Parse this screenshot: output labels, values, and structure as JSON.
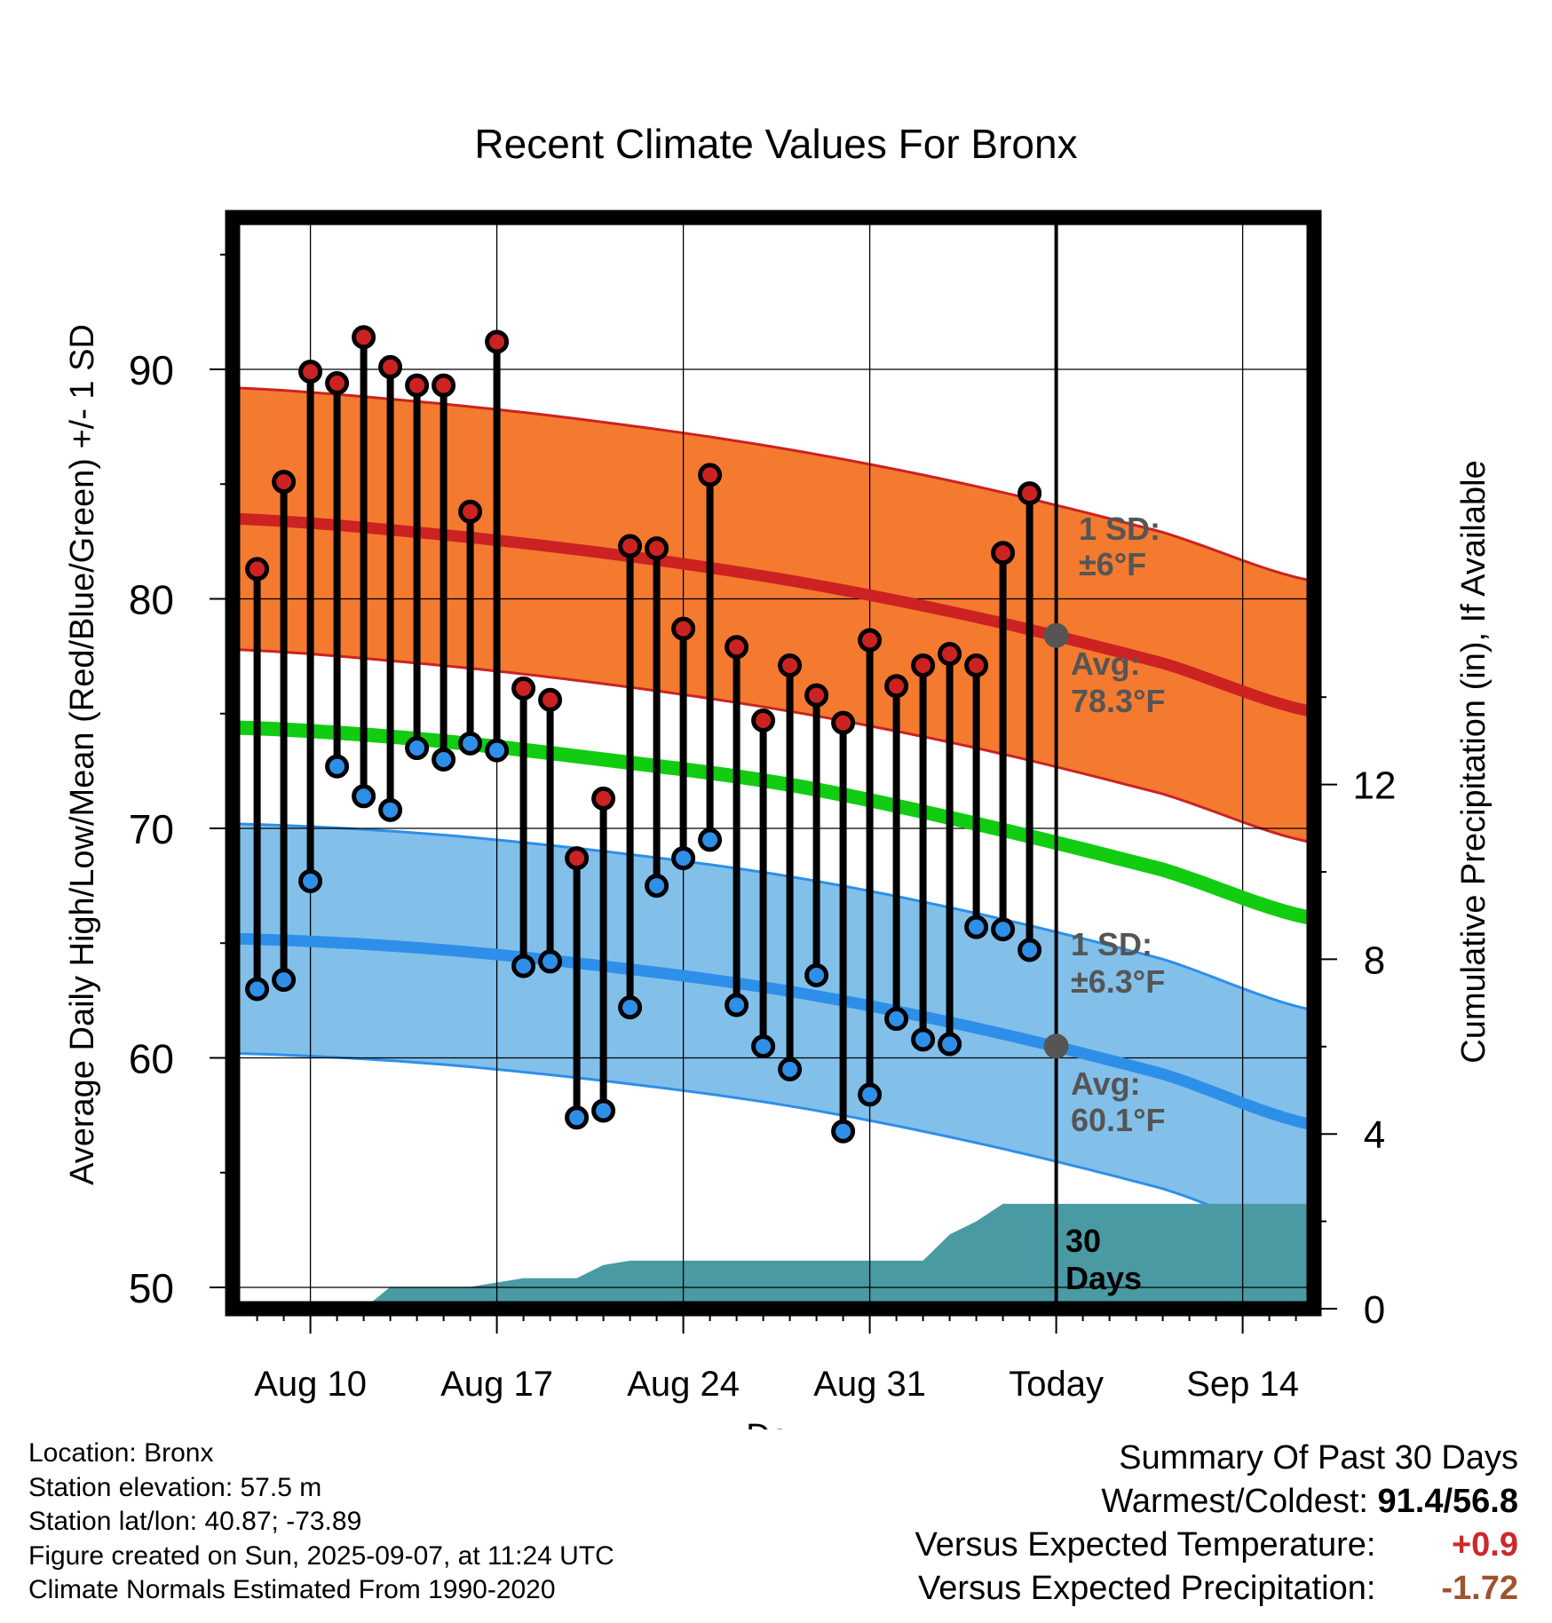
{
  "chart_data": {
    "type": "scatter",
    "title": "Recent Climate Values For Bronx",
    "xlabel": "Day",
    "ylabel": "Average Daily High/Low/Mean (Red/Blue/Green) +/- 1 SD",
    "ylabel_right": "Cumulative Precipitation (in), If Available",
    "x_tick_labels": [
      "Aug 10",
      "Aug 17",
      "Aug 24",
      "Aug 31",
      "Today",
      "Sep 14"
    ],
    "y_ticks": [
      50,
      60,
      70,
      80,
      90
    ],
    "y2_ticks": [
      0,
      4,
      8,
      12
    ],
    "ylim": [
      49,
      96
    ],
    "y2lim": [
      0,
      24
    ],
    "colors": {
      "high": "#cc2222",
      "high_band": "#f47a30",
      "low": "#2e8fe8",
      "low_band": "#82c0ea",
      "mean": "#11cc11",
      "precip": "#4a9aa3",
      "marker": "#555555"
    },
    "days": [
      "Aug 8",
      "Aug 9",
      "Aug 10",
      "Aug 11",
      "Aug 12",
      "Aug 13",
      "Aug 14",
      "Aug 15",
      "Aug 16",
      "Aug 17",
      "Aug 18",
      "Aug 19",
      "Aug 20",
      "Aug 21",
      "Aug 22",
      "Aug 23",
      "Aug 24",
      "Aug 25",
      "Aug 26",
      "Aug 27",
      "Aug 28",
      "Aug 29",
      "Aug 30",
      "Aug 31",
      "Sep 1",
      "Sep 2",
      "Sep 3",
      "Sep 4",
      "Sep 5",
      "Sep 6"
    ],
    "highs": [
      81.3,
      85.1,
      89.9,
      89.4,
      91.4,
      90.1,
      89.3,
      89.3,
      83.8,
      91.2,
      76.1,
      75.6,
      68.7,
      71.3,
      82.3,
      82.2,
      78.7,
      85.4,
      77.9,
      74.7,
      77.1,
      75.8,
      74.6,
      78.2,
      76.2,
      77.1,
      77.6,
      77.1,
      82.0,
      84.6
    ],
    "lows": [
      63.0,
      63.4,
      67.7,
      72.7,
      71.4,
      70.8,
      73.5,
      73.0,
      73.7,
      73.4,
      64.0,
      64.2,
      57.4,
      57.7,
      62.2,
      67.5,
      68.7,
      69.5,
      62.3,
      60.5,
      59.5,
      63.6,
      56.8,
      58.4,
      61.7,
      60.8,
      60.6,
      65.7,
      65.6,
      64.7
    ],
    "normal_high_days": [
      "Aug 7",
      "Aug 14",
      "Aug 21",
      "Aug 28",
      "Sep 4",
      "Sep 11",
      "Sep 17"
    ],
    "normal_high": [
      83.5,
      82.9,
      82.0,
      80.8,
      79.2,
      77.2,
      75.0
    ],
    "normal_high_sd": 5.7,
    "normal_low": [
      65.2,
      64.8,
      64.0,
      62.9,
      61.3,
      59.3,
      57.0
    ],
    "normal_low_sd": 5.0,
    "normal_mean": [
      74.4,
      73.9,
      73.0,
      71.9,
      70.2,
      68.2,
      66.0
    ],
    "precip_days": [
      "Aug 12",
      "Aug 13",
      "Aug 14",
      "Aug 15",
      "Aug 16",
      "Aug 17",
      "Aug 18",
      "Aug 19",
      "Aug 20",
      "Aug 21",
      "Aug 22",
      "Sep 2",
      "Sep 3",
      "Sep 4",
      "Sep 5",
      "Sep 6",
      "Sep 17"
    ],
    "precip": [
      0.0,
      0.5,
      0.5,
      0.5,
      0.5,
      0.6,
      0.7,
      0.7,
      0.7,
      1.0,
      1.1,
      1.1,
      1.7,
      2.0,
      2.4,
      2.4,
      2.4
    ],
    "annotations": {
      "high_sd_label": "1 SD:",
      "high_sd_value": "±6°F",
      "high_avg_label": "Avg:",
      "high_avg_value": "78.3°F",
      "low_sd_label": "1 SD:",
      "low_sd_value": "±6.3°F",
      "low_avg_label": "Avg:",
      "low_avg_value": "60.1°F",
      "days_count": "30",
      "days_word": "Days"
    }
  },
  "info": {
    "location": "Location: Bronx",
    "elevation": "Station elevation: 57.5 m",
    "latlon": "Station lat/lon: 40.87; -73.89",
    "created": "Figure created on Sun, 2025-09-07, at 11:24 UTC",
    "normals": "Climate Normals Estimated From 1990-2020"
  },
  "summary": {
    "title": "Summary Of Past 30 Days",
    "warm_label": "Warmest/Coldest:",
    "warm_value": "91.4/56.8",
    "temp_label": "Versus Expected Temperature:",
    "temp_value": "+0.9",
    "prcp_label": "Versus Expected Precipitation:",
    "prcp_value": "-1.72"
  }
}
